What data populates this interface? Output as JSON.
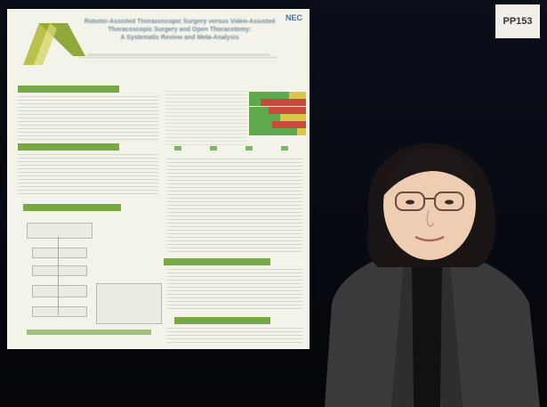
{
  "scene": {
    "description": "",
    "board_tag": "PP153",
    "poster": {
      "brand": "NEC",
      "title_lines": [
        "Robotic-Assisted Thoracoscopic Surgery versus Video-Assisted",
        "Thoracoscopic Surgery and Open Thoracotomy:",
        "A Systematic Review and Meta-Analysis"
      ]
    }
  },
  "colors": {
    "backdrop": "#070a12",
    "poster_bg": "#f4f3ea",
    "section_green": "#78a846",
    "jacket": "#3a3a3d",
    "shirt": "#111112"
  }
}
